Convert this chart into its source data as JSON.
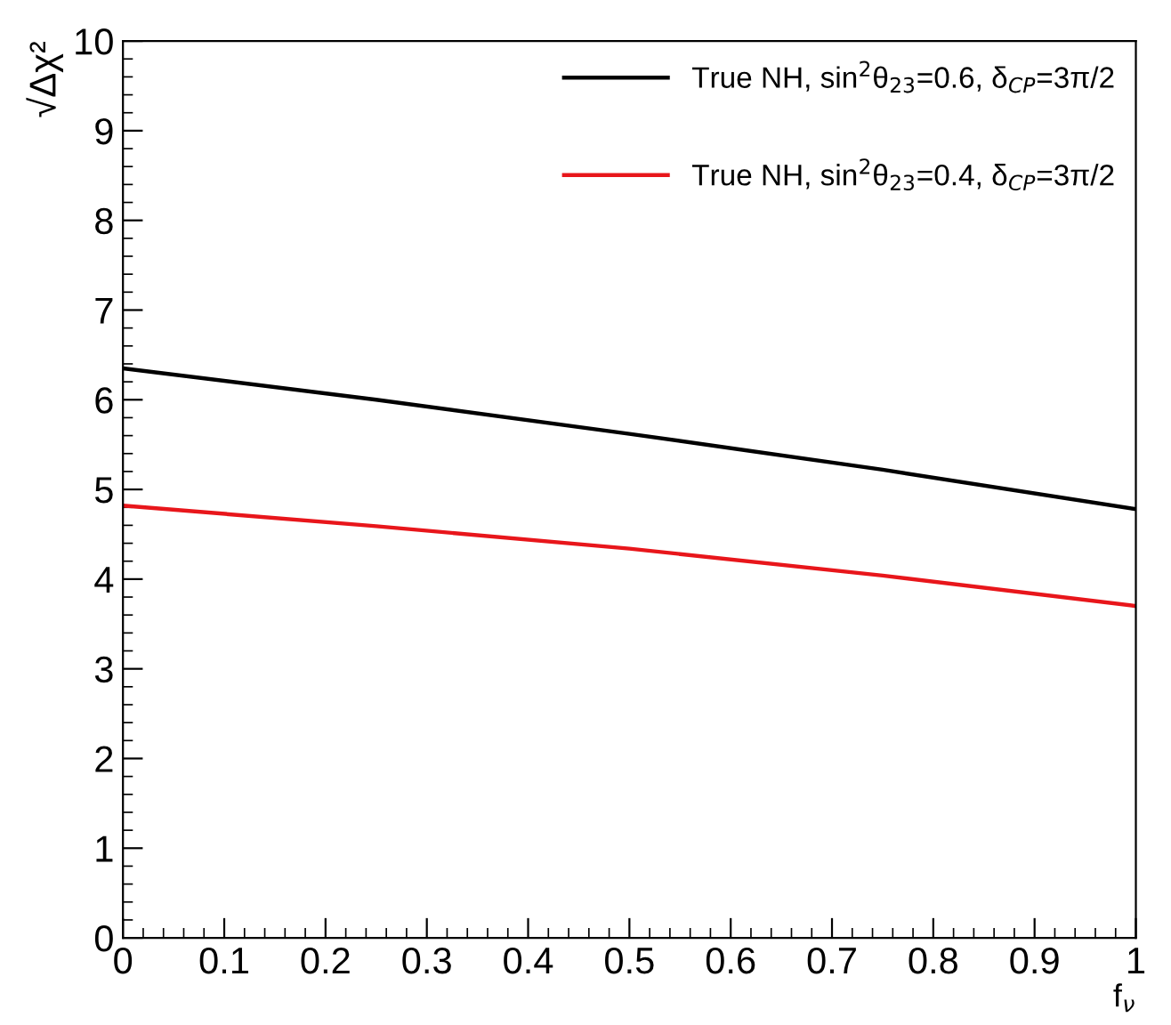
{
  "chart_data": {
    "type": "line",
    "xlabel": "f$_{ν}$",
    "ylabel": "√Δχ²",
    "x": [
      0,
      0.25,
      0.5,
      0.75,
      1
    ],
    "series": [
      {
        "name": "True NH, sin$^{2}$θ$_{23}$=0.6, δ$_{CP}$=3π/2",
        "color": "#000000",
        "values": [
          6.35,
          6.0,
          5.62,
          5.22,
          4.78
        ]
      },
      {
        "name": "True NH, sin$^{2}$θ$_{23}$=0.4, δ$_{CP}$=3π/2",
        "color": "#e8161b",
        "values": [
          4.82,
          4.59,
          4.34,
          4.04,
          3.7
        ]
      }
    ],
    "xlim": [
      0,
      1
    ],
    "ylim": [
      0,
      10
    ],
    "xticks": [
      0,
      0.1,
      0.2,
      0.3,
      0.4,
      0.5,
      0.6,
      0.7,
      0.8,
      0.9,
      1
    ],
    "yticks": [
      0,
      1,
      2,
      3,
      4,
      5,
      6,
      7,
      8,
      9,
      10
    ],
    "grid": false,
    "legend": "top right",
    "marker": "none",
    "line_style": "solid"
  }
}
